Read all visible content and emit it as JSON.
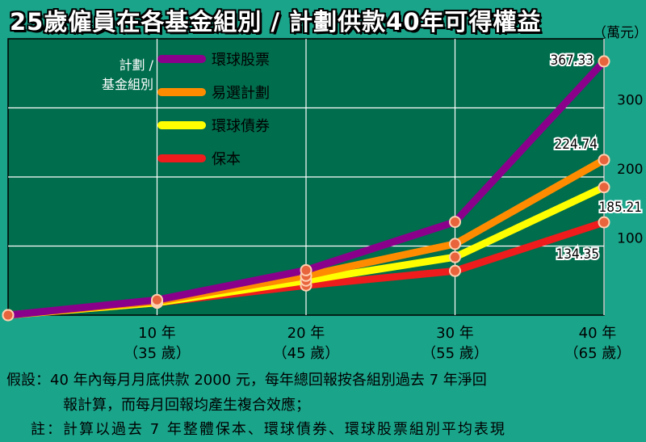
{
  "title": "25歲僱員在各基金組別 / 計劃供款40年可得權益",
  "unit": "（萬元）",
  "legend_title": [
    "計劃 /",
    "基金組別"
  ],
  "chart_data": {
    "type": "line",
    "x": [
      0,
      10,
      20,
      30,
      40
    ],
    "x_tick_labels": [
      {
        "x": 10,
        "lines": [
          "10 年",
          "（35 歲）"
        ]
      },
      {
        "x": 20,
        "lines": [
          "20 年",
          "（45 歲）"
        ]
      },
      {
        "x": 30,
        "lines": [
          "30 年",
          "（55 歲）"
        ]
      },
      {
        "x": 40,
        "lines": [
          "40 年",
          "（65 歲）"
        ]
      }
    ],
    "y_ticks": [
      100,
      200,
      300
    ],
    "xlim": [
      0,
      40
    ],
    "ylim": [
      0,
      400
    ],
    "grid": true,
    "legend_position": "top-left",
    "series": [
      {
        "name": "環球股票",
        "color": "#8b008b",
        "values": [
          0,
          22,
          65,
          135,
          367.33
        ],
        "end_label": "367.33"
      },
      {
        "name": "易選計劃",
        "color": "#ff8c00",
        "values": [
          0,
          20,
          57,
          103,
          224.74
        ],
        "end_label": "224.74"
      },
      {
        "name": "環球債券",
        "color": "#ffff00",
        "values": [
          0,
          18,
          50,
          84,
          185.21
        ],
        "end_label": "185.21"
      },
      {
        "name": "保本",
        "color": "#ee1c1c",
        "values": [
          0,
          18,
          43,
          64,
          134.35
        ],
        "end_label": "134.35"
      }
    ]
  },
  "notes": {
    "line1": "假設：40 年內每月月底供款 2000 元，每年總回報按各組別過去 7 年淨回",
    "line2": "報計算，而每月回報均產生複合效應；",
    "line3": "註：計算以過去 7 年整體保本、環球債券、環球股票組別平均表現"
  }
}
